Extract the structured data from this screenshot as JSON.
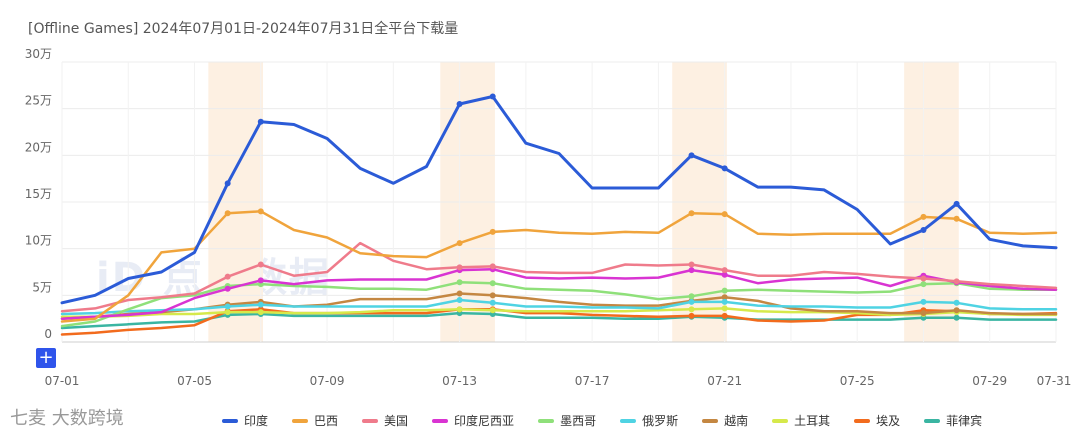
{
  "title": "[Offline Games]   2024年07月01日-2024年07月31日全平台下载量",
  "watermark": "iD 点点数据",
  "footer_logo": "七麦 大数跨境",
  "plus_label": "+",
  "chart_data": {
    "type": "line",
    "title": "[Offline Games]   2024年07月01日-2024年07月31日全平台下载量",
    "y_ticks": [
      "0",
      "5万",
      "10万",
      "15万",
      "20万",
      "25万",
      "30万"
    ],
    "ylim": [
      0,
      300000
    ],
    "x_tick_labels": [
      "07-01",
      "07-05",
      "07-09",
      "07-13",
      "07-17",
      "07-21",
      "07-25",
      "07-29",
      "07-31"
    ],
    "x_tick_days": [
      1,
      5,
      9,
      13,
      17,
      21,
      25,
      29,
      31
    ],
    "highlight_days": [
      6,
      13,
      20,
      27
    ],
    "series": [
      {
        "name": "印度",
        "color": "#2b5bd7",
        "values": [
          42000,
          50000,
          68000,
          75000,
          96000,
          170000,
          236000,
          233000,
          218000,
          186000,
          170000,
          188000,
          255000,
          263000,
          213000,
          202000,
          165000,
          165000,
          165000,
          200000,
          186000,
          166000,
          166000,
          163000,
          142000,
          105000,
          120000,
          148000,
          110000,
          103000,
          101000
        ],
        "markers": [
          6,
          7,
          13,
          14,
          20,
          21,
          27,
          28
        ]
      },
      {
        "name": "巴西",
        "color": "#f0a43c",
        "values": [
          22000,
          25000,
          50000,
          96000,
          100000,
          138000,
          140000,
          120000,
          112000,
          95000,
          92000,
          91000,
          106000,
          118000,
          120000,
          117000,
          116000,
          118000,
          117000,
          138000,
          137000,
          116000,
          115000,
          116000,
          116000,
          116000,
          134000,
          132000,
          117000,
          116000,
          117000
        ],
        "markers": [
          6,
          7,
          13,
          14,
          20,
          21,
          27,
          28
        ]
      },
      {
        "name": "美国",
        "color": "#ef7b8b",
        "values": [
          33000,
          36000,
          45000,
          48000,
          52000,
          70000,
          83000,
          71000,
          75000,
          106000,
          87000,
          78000,
          80000,
          81000,
          75000,
          74000,
          74000,
          83000,
          82000,
          83000,
          77000,
          71000,
          71000,
          75000,
          73000,
          70000,
          68000,
          65000,
          62000,
          60000,
          58000
        ],
        "markers": [
          6,
          7,
          13,
          14,
          20,
          21,
          27,
          28
        ]
      },
      {
        "name": "印度尼西亚",
        "color": "#d934d2",
        "values": [
          25000,
          27000,
          29000,
          32000,
          47000,
          57000,
          66000,
          62000,
          66000,
          67000,
          67000,
          67000,
          77000,
          78000,
          69000,
          68000,
          69000,
          68000,
          69000,
          77000,
          72000,
          63000,
          67000,
          68000,
          69000,
          60000,
          71000,
          64000,
          60000,
          57000,
          56000
        ],
        "markers": [
          6,
          7,
          13,
          14,
          20,
          21,
          27,
          28
        ]
      },
      {
        "name": "墨西哥",
        "color": "#8fe07a",
        "values": [
          17000,
          22000,
          35000,
          47000,
          50000,
          60000,
          62000,
          60000,
          59000,
          57000,
          57000,
          56000,
          64000,
          63000,
          57000,
          56000,
          55000,
          51000,
          46000,
          49000,
          55000,
          56000,
          55000,
          54000,
          53000,
          54000,
          62000,
          63000,
          57000,
          56000,
          56000
        ],
        "markers": [
          6,
          7,
          13,
          14,
          20,
          21,
          27,
          28
        ]
      },
      {
        "name": "俄罗斯",
        "color": "#4fd3e3",
        "values": [
          30000,
          31000,
          33000,
          34000,
          35000,
          38000,
          40000,
          38000,
          38000,
          38000,
          38000,
          38000,
          45000,
          42000,
          38000,
          38000,
          37000,
          37000,
          36000,
          43000,
          43000,
          39000,
          38000,
          38000,
          37000,
          37000,
          43000,
          42000,
          36000,
          35000,
          35000
        ],
        "markers": [
          6,
          7,
          13,
          14,
          20,
          21,
          27,
          28
        ]
      },
      {
        "name": "越南",
        "color": "#c48742",
        "values": [
          25000,
          27000,
          30000,
          32000,
          35000,
          40000,
          43000,
          38000,
          40000,
          46000,
          46000,
          46000,
          52000,
          50000,
          47000,
          43000,
          40000,
          39000,
          39000,
          44000,
          48000,
          44000,
          36000,
          33000,
          33000,
          31000,
          31000,
          34000,
          31000,
          30000,
          30000
        ],
        "markers": [
          6,
          7,
          13,
          14,
          20,
          21,
          27,
          28
        ]
      },
      {
        "name": "土耳其",
        "color": "#d6e94b",
        "values": [
          27000,
          27000,
          28000,
          30000,
          30000,
          32000,
          32000,
          31000,
          31000,
          32000,
          34000,
          34000,
          35000,
          34000,
          33000,
          33000,
          33000,
          33000,
          34000,
          35000,
          36000,
          33000,
          32000,
          32000,
          31000,
          29000,
          30000,
          32000,
          30000,
          29000,
          29000
        ],
        "markers": [
          6,
          7,
          13,
          14,
          20,
          21,
          27,
          28
        ]
      },
      {
        "name": "埃及",
        "color": "#f26b1d",
        "values": [
          8000,
          10000,
          13000,
          15000,
          18000,
          33000,
          35000,
          31000,
          31000,
          31000,
          31000,
          31000,
          35000,
          35000,
          31000,
          31000,
          29000,
          28000,
          27000,
          28000,
          28000,
          23000,
          22000,
          23000,
          29000,
          29000,
          34000,
          33000,
          30000,
          30000,
          31000
        ],
        "markers": [
          6,
          7,
          13,
          14,
          20,
          21,
          27,
          28
        ]
      },
      {
        "name": "菲律宾",
        "color": "#3ab5a2",
        "values": [
          15000,
          17000,
          19000,
          21000,
          22000,
          29000,
          30000,
          28000,
          28000,
          28000,
          28000,
          28000,
          31000,
          30000,
          26000,
          26000,
          26000,
          25000,
          25000,
          27000,
          26000,
          24000,
          24000,
          24000,
          24000,
          24000,
          26000,
          26000,
          24000,
          24000,
          24000
        ],
        "markers": [
          6,
          7,
          13,
          14,
          20,
          21,
          27,
          28
        ]
      }
    ]
  }
}
